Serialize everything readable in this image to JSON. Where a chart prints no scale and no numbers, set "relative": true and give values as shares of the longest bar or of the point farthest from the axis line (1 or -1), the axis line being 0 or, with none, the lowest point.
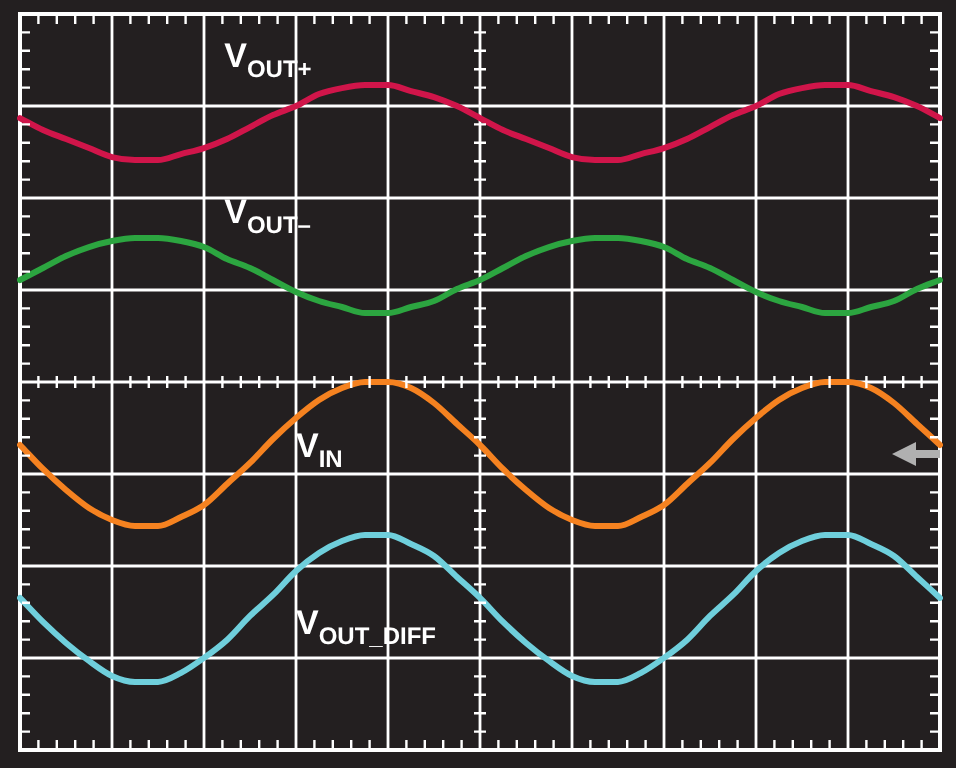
{
  "chart_data": {
    "type": "line",
    "relative": true,
    "grid": true,
    "legend": false,
    "marker": "none",
    "line_style": "solid",
    "categories": [
      null,
      null,
      null,
      null,
      null,
      null,
      null,
      null,
      null,
      null,
      null,
      null,
      null,
      null,
      null,
      null,
      null,
      null,
      null,
      null,
      null,
      null,
      null,
      null,
      null,
      null,
      null,
      null,
      null,
      null,
      null,
      null,
      null,
      null,
      null,
      null,
      null,
      null,
      null,
      null,
      null
    ],
    "series": [
      {
        "name": "V$_{OUT+}$",
        "color": "#d0154a",
        "values": [
          0.88,
          0.84,
          0.81,
          0.78,
          0.75,
          0.74,
          0.74,
          0.76,
          0.78,
          0.81,
          0.85,
          0.89,
          0.92,
          0.96,
          0.98,
          0.99,
          0.99,
          0.97,
          0.95,
          0.92,
          0.88,
          0.84,
          0.81,
          0.78,
          0.75,
          0.74,
          0.74,
          0.76,
          0.78,
          0.81,
          0.85,
          0.89,
          0.92,
          0.96,
          0.98,
          0.99,
          0.99,
          0.97,
          0.95,
          0.92,
          0.88
        ]
      },
      {
        "name": "V$_{OUT–}$",
        "color": "#2ca540",
        "values": [
          0.34,
          0.38,
          0.42,
          0.45,
          0.47,
          0.48,
          0.48,
          0.47,
          0.45,
          0.41,
          0.38,
          0.34,
          0.3,
          0.27,
          0.25,
          0.23,
          0.23,
          0.25,
          0.27,
          0.31,
          0.34,
          0.38,
          0.42,
          0.45,
          0.47,
          0.48,
          0.48,
          0.47,
          0.45,
          0.41,
          0.38,
          0.34,
          0.3,
          0.27,
          0.25,
          0.23,
          0.23,
          0.25,
          0.27,
          0.31,
          0.34
        ]
      },
      {
        "name": "V$_{IN}$",
        "color": "#f58220",
        "values": [
          -0.21,
          -0.29,
          -0.36,
          -0.42,
          -0.46,
          -0.48,
          -0.48,
          -0.45,
          -0.41,
          -0.34,
          -0.27,
          -0.19,
          -0.12,
          -0.06,
          -0.02,
          0,
          0,
          -0.02,
          -0.07,
          -0.14,
          -0.21,
          -0.29,
          -0.36,
          -0.42,
          -0.46,
          -0.48,
          -0.48,
          -0.45,
          -0.41,
          -0.34,
          -0.27,
          -0.19,
          -0.12,
          -0.06,
          -0.02,
          0,
          0,
          -0.02,
          -0.07,
          -0.14,
          -0.21
        ]
      },
      {
        "name": "V$_{OUT_DIFF}$",
        "color": "#6fcfdc",
        "values": [
          -0.72,
          -0.8,
          -0.87,
          -0.93,
          -0.98,
          -1,
          -1,
          -0.97,
          -0.92,
          -0.86,
          -0.78,
          -0.71,
          -0.63,
          -0.57,
          -0.53,
          -0.51,
          -0.51,
          -0.54,
          -0.58,
          -0.65,
          -0.72,
          -0.8,
          -0.87,
          -0.93,
          -0.98,
          -1,
          -1,
          -0.97,
          -0.92,
          -0.86,
          -0.78,
          -0.71,
          -0.63,
          -0.57,
          -0.53,
          -0.51,
          -0.51,
          -0.54,
          -0.58,
          -0.65,
          -0.72
        ]
      }
    ]
  }
}
